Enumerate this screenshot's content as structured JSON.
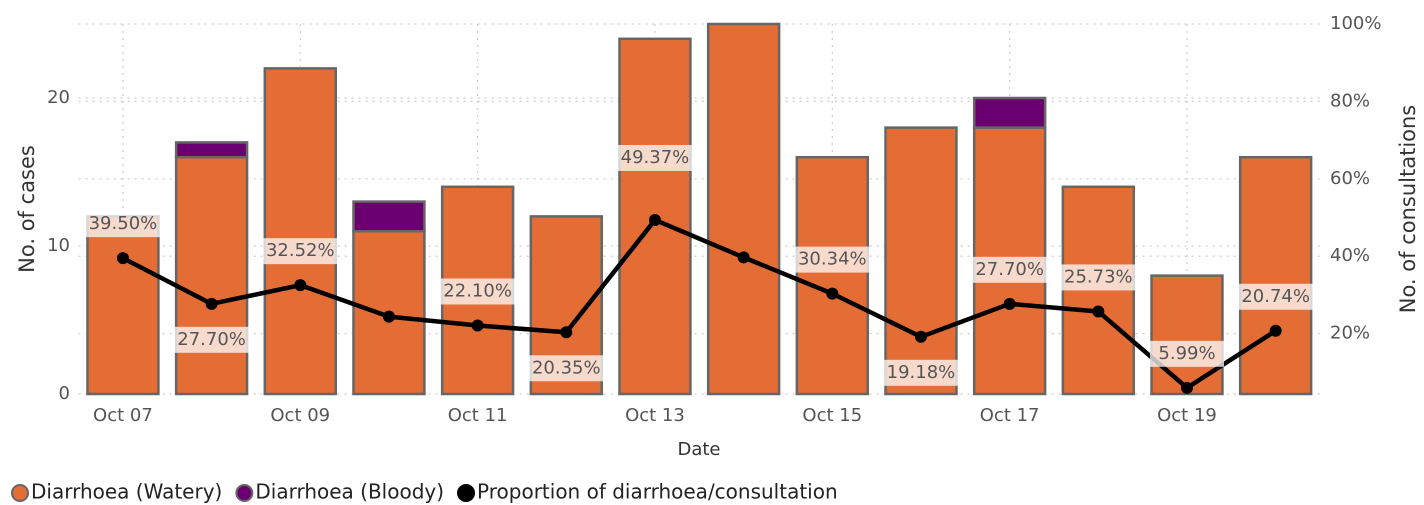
{
  "chart_data": {
    "type": "bar",
    "x_label": "Date",
    "y_label": "No. of cases",
    "y2_label": "No. of consultations",
    "categories": [
      "Oct 07",
      null,
      "Oct 09",
      null,
      "Oct 11",
      null,
      "Oct 13",
      null,
      "Oct 15",
      null,
      "Oct 17",
      null,
      "Oct 19",
      null
    ],
    "series": [
      {
        "name": "Diarrhoea (Watery)",
        "type": "bar",
        "color": "#e46c35",
        "values": [
          12,
          16,
          22,
          11,
          14,
          12,
          24,
          25,
          16,
          18,
          18,
          14,
          8,
          16
        ]
      },
      {
        "name": "Diarrhoea (Bloody)",
        "type": "bar",
        "color": "#6a006f",
        "values": [
          0,
          1,
          0,
          2,
          0,
          0,
          0,
          0,
          0,
          0,
          2,
          0,
          0,
          0
        ]
      },
      {
        "name": "Proportion of diarrhoea/consultation",
        "type": "line",
        "axis": "y2",
        "color": "#000000",
        "values": [
          39.5,
          27.7,
          32.52,
          24.4,
          22.1,
          20.35,
          49.37,
          39.7,
          30.34,
          19.18,
          27.7,
          25.73,
          5.99,
          20.74
        ],
        "value_labels": [
          "39.50%",
          "27.70%",
          "32.52%",
          null,
          "22.10%",
          "20.35%",
          "49.37%",
          null,
          "30.34%",
          "19.18%",
          "27.70%",
          "25.73%",
          "5.99%",
          "20.74%"
        ]
      }
    ],
    "ylim": [
      0,
      25
    ],
    "yticks": [
      0,
      10,
      20
    ],
    "y2lim": [
      4.4,
      100
    ],
    "y2ticks": [
      {
        "value": 20,
        "label": "20%"
      },
      {
        "value": 40,
        "label": "40%"
      },
      {
        "value": 60,
        "label": "60%"
      },
      {
        "value": 80,
        "label": "80%"
      },
      {
        "value": 100,
        "label": "100%"
      }
    ],
    "grid": true,
    "stacked": true,
    "legend": "bottom-left"
  }
}
